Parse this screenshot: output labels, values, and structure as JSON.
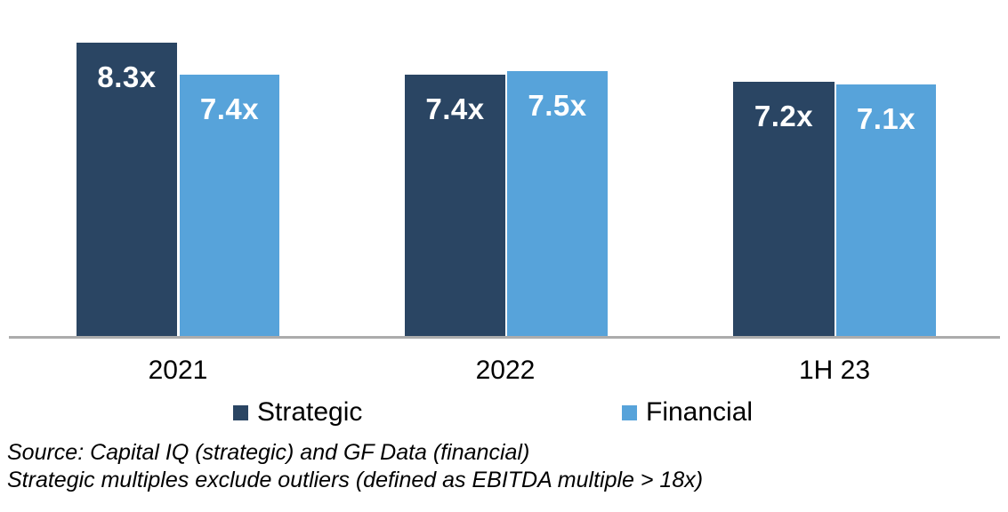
{
  "chart_data": {
    "type": "bar",
    "title": "",
    "xlabel": "",
    "ylabel": "",
    "categories": [
      "2021",
      "2022",
      "1H 23"
    ],
    "series": [
      {
        "name": "Strategic",
        "color": "#2a4563",
        "values": [
          8.3,
          7.4,
          7.2
        ],
        "labels": [
          "8.3x",
          "7.4x",
          "7.2x"
        ]
      },
      {
        "name": "Financial",
        "color": "#57a3da",
        "values": [
          7.4,
          7.5,
          7.1
        ],
        "labels": [
          "7.4x",
          "7.5x",
          "7.1x"
        ]
      }
    ],
    "value_suffix": "x",
    "ylim": [
      0,
      9.5
    ],
    "y_axis_visible": false,
    "grid": false,
    "legend_position": "bottom",
    "data_label_color": "#ffffff",
    "axis_line_color": "#acacac"
  },
  "legend": {
    "items": [
      {
        "label": "Strategic",
        "color": "#2a4563"
      },
      {
        "label": "Financial",
        "color": "#57a3da"
      }
    ]
  },
  "footnotes": {
    "line1": "Source: Capital IQ (strategic) and GF Data (financial)",
    "line2": "Strategic multiples exclude outliers (defined as EBITDA multiple > 18x)"
  }
}
